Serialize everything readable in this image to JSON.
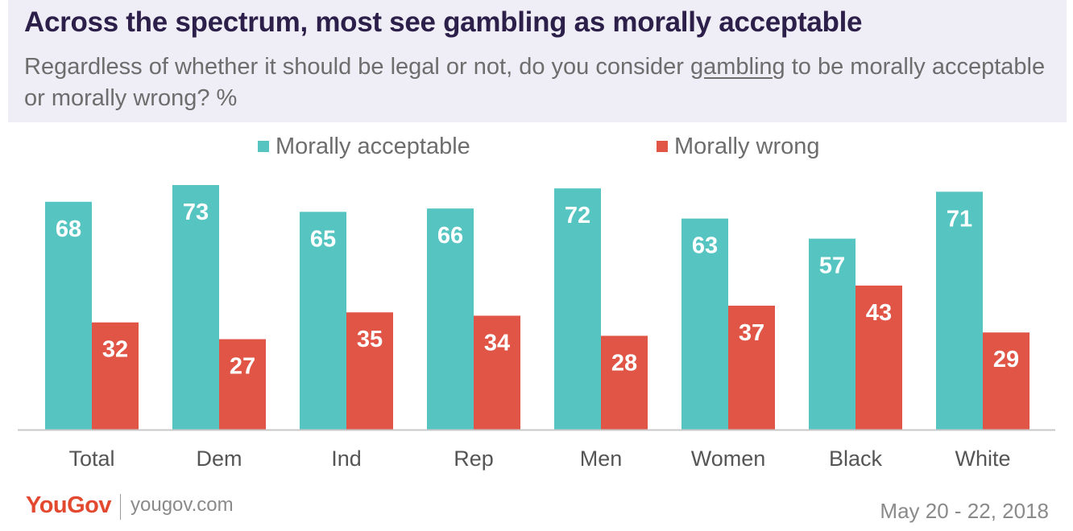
{
  "header": {
    "title": "Across the spectrum, most see gambling as morally acceptable",
    "subtitle_before": "Regardless of whether it should be legal or not, do you consider ",
    "subtitle_underlined": "gambling",
    "subtitle_after": " to be morally acceptable or morally wrong? %"
  },
  "chart_data": {
    "type": "bar",
    "categories": [
      "Total",
      "Dem",
      "Ind",
      "Rep",
      "Men",
      "Women",
      "Black",
      "White"
    ],
    "series": [
      {
        "name": "Morally acceptable",
        "values": [
          68,
          73,
          65,
          66,
          72,
          63,
          57,
          71
        ],
        "color": "#56c5c2"
      },
      {
        "name": "Morally wrong",
        "values": [
          32,
          27,
          35,
          34,
          28,
          37,
          43,
          29
        ],
        "color": "#e05546"
      }
    ],
    "ylim": [
      0,
      73
    ],
    "grid": false,
    "legend_position": "top-center",
    "data_labels": true
  },
  "footer": {
    "logo": "YouGov",
    "site": "yougov.com",
    "date": "May 20 - 22, 2018"
  }
}
